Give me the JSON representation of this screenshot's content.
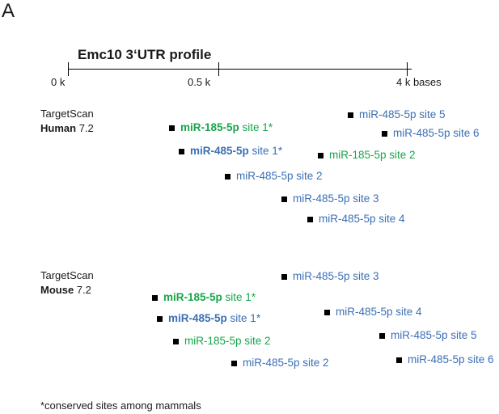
{
  "panel_letter": "A",
  "profile": {
    "title": "Emc10 3‘UTR profile",
    "ticks": [
      "0 k",
      "0.5 k",
      "4 k bases"
    ]
  },
  "colors": {
    "mir485": "#3c6fb5",
    "mir185": "#17a54a"
  },
  "tracks": [
    {
      "label_line1": "TargetScan",
      "label_species": "Human",
      "label_version": "7.2",
      "sites": [
        {
          "mir": "miR-185-5p",
          "site": "site 1*",
          "bold": true,
          "color": "green"
        },
        {
          "mir": "miR-485-5p",
          "site": "site 1*",
          "bold": true,
          "color": "blue"
        },
        {
          "mir": "miR-485-5p",
          "site": "site 2",
          "bold": false,
          "color": "blue"
        },
        {
          "mir": "miR-485-5p",
          "site": "site 3",
          "bold": false,
          "color": "blue"
        },
        {
          "mir": "miR-485-5p",
          "site": "site 4",
          "bold": false,
          "color": "blue"
        },
        {
          "mir": "miR-185-5p",
          "site": "site 2",
          "bold": false,
          "color": "green"
        },
        {
          "mir": "miR-485-5p",
          "site": "site 5",
          "bold": false,
          "color": "blue"
        },
        {
          "mir": "miR-485-5p",
          "site": "site 6",
          "bold": false,
          "color": "blue"
        }
      ]
    },
    {
      "label_line1": "TargetScan",
      "label_species": "Mouse",
      "label_version": "7.2",
      "sites": [
        {
          "mir": "miR-185-5p",
          "site": "site 1*",
          "bold": true,
          "color": "green"
        },
        {
          "mir": "miR-485-5p",
          "site": "site 1*",
          "bold": true,
          "color": "blue"
        },
        {
          "mir": "miR-185-5p",
          "site": "site 2",
          "bold": false,
          "color": "green"
        },
        {
          "mir": "miR-485-5p",
          "site": "site 2",
          "bold": false,
          "color": "blue"
        },
        {
          "mir": "miR-485-5p",
          "site": "site 3",
          "bold": false,
          "color": "blue"
        },
        {
          "mir": "miR-485-5p",
          "site": "site 4",
          "bold": false,
          "color": "blue"
        },
        {
          "mir": "miR-485-5p",
          "site": "site 5",
          "bold": false,
          "color": "blue"
        },
        {
          "mir": "miR-485-5p",
          "site": "site 6",
          "bold": false,
          "color": "blue"
        }
      ]
    }
  ],
  "footnote": "*conserved sites among mammals"
}
